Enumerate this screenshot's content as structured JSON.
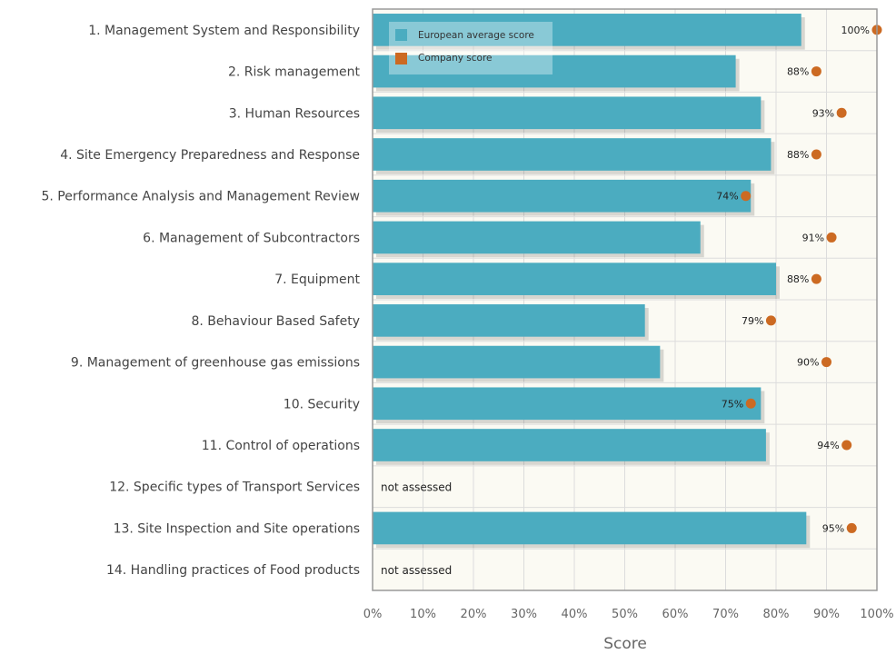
{
  "chart_data": {
    "type": "bar",
    "orientation": "horizontal",
    "categories": [
      "1. Management System and Responsibility",
      "2. Risk management",
      "3. Human Resources",
      "4. Site Emergency Preparedness and Response",
      "5. Performance Analysis and Management Review",
      "6. Management of Subcontractors",
      "7. Equipment",
      "8. Behaviour Based Safety",
      "9. Management of greenhouse gas emissions",
      "10. Security",
      "11. Control of operations",
      "12. Specific types of Transport Services",
      "13. Site Inspection and Site operations",
      "14. Handling practices of Food products"
    ],
    "series": [
      {
        "name": "European average score",
        "kind": "bar",
        "color": "#4bacc0",
        "values": [
          85,
          72,
          77,
          79,
          75,
          65,
          80,
          54,
          57,
          77,
          78,
          null,
          86,
          null
        ]
      },
      {
        "name": "Company score",
        "kind": "point",
        "color": "#cc6a22",
        "values": [
          100,
          88,
          93,
          88,
          74,
          91,
          88,
          79,
          90,
          75,
          94,
          null,
          95,
          null
        ],
        "labels": [
          "100%",
          "88%",
          "93%",
          "88%",
          "74%",
          "91%",
          "88%",
          "79%",
          "90%",
          "75%",
          "94%",
          "",
          "95%",
          ""
        ]
      }
    ],
    "not_assessed_label": "not assessed",
    "xlabel": "Score",
    "ylabel": "",
    "xlim": [
      0,
      100
    ],
    "xticks": [
      "0%",
      "10%",
      "20%",
      "30%",
      "40%",
      "50%",
      "60%",
      "70%",
      "80%",
      "90%",
      "100%"
    ],
    "grid": true,
    "legend_position": "top-left"
  }
}
